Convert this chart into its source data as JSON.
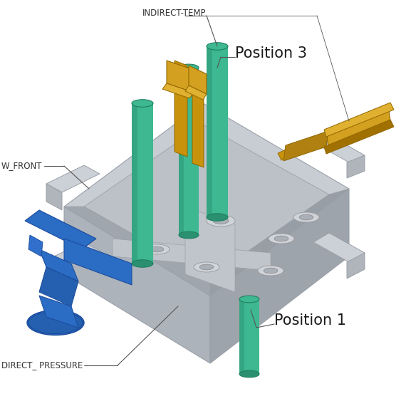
{
  "background_color": "#ffffff",
  "label_indirect_temp": "INDIRECT-TEMP",
  "label_position3": "Position 3",
  "label_wfront": "W_FRONT",
  "label_position1": "Position 1",
  "label_direct_pressure": "DIRECT_ PRESSURE",
  "label_fontsize_small": 8.5,
  "label_fontsize_large": 15,
  "figsize": [
    5.7,
    5.7
  ],
  "dpi": 100,
  "gray_top": "#c8cdd4",
  "gray_left": "#adb3ba",
  "gray_right": "#9ea4ab",
  "gray_inner": "#bcc1c8",
  "gray_cavity": "#b0b6be",
  "green_body": "#3db891",
  "green_top": "#4dcba0",
  "green_dark": "#2a9070",
  "gold_body": "#c8920c",
  "gold_light": "#d4a020",
  "blue_main": "#2b6cc4",
  "blue_dark": "#1a4a9a"
}
